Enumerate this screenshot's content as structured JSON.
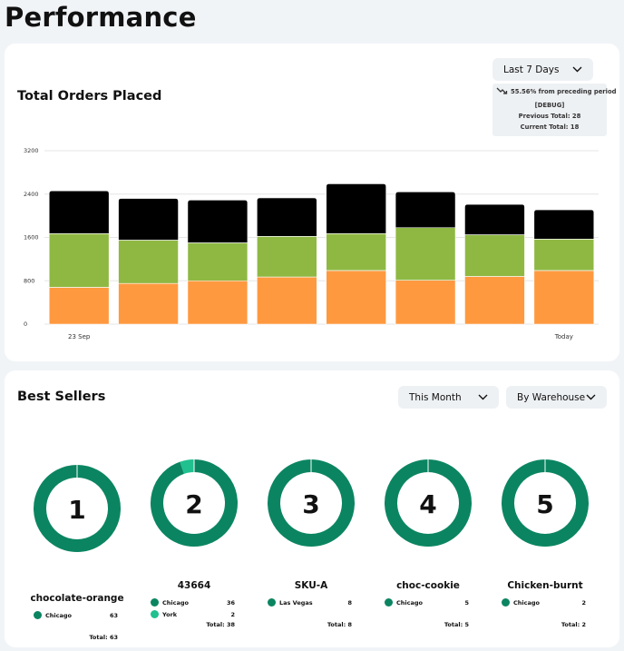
{
  "page": {
    "title": "Performance"
  },
  "orders": {
    "title": "Total Orders Placed",
    "range_dropdown": "Last 7 Days",
    "trend_text": "55.56% from preceding period",
    "debug_label": "[DEBUG]",
    "previous_total": "Previous Total: 28",
    "current_total": "Current Total: 18",
    "colors": {
      "orange": "#ff9940",
      "green": "#8fb843",
      "black": "#000000",
      "grid": "#e6e6e6"
    }
  },
  "chart_data": {
    "type": "bar",
    "stacked": true,
    "categories": [
      "23 Sep",
      "",
      "",
      "",
      "",
      "",
      "",
      "Today"
    ],
    "series": [
      {
        "values": [
          680,
          750,
          800,
          870,
          990,
          810,
          880,
          990
        ]
      },
      {
        "values": [
          990,
          800,
          700,
          750,
          680,
          970,
          770,
          580
        ]
      },
      {
        "values": [
          790,
          770,
          790,
          710,
          920,
          660,
          560,
          540
        ]
      }
    ],
    "yticks": [
      "0",
      "800",
      "1600",
      "2400",
      "3200"
    ],
    "ylim": [
      0,
      3200
    ],
    "grid": true,
    "legend": "none"
  },
  "best": {
    "title": "Best Sellers",
    "period_dropdown": "This Month",
    "group_dropdown": "By Warehouse",
    "colors": {
      "primary": "#0b8561",
      "secondary": "#20c08f"
    },
    "items": [
      {
        "rank": "1",
        "name": "chocolate-orange",
        "rows": [
          {
            "label": "Chicago",
            "value": "63",
            "color": "#0b8561"
          }
        ],
        "total": "Total: 63",
        "slices": [
          63
        ]
      },
      {
        "rank": "2",
        "name": "43664",
        "rows": [
          {
            "label": "Chicago",
            "value": "36",
            "color": "#0b8561"
          },
          {
            "label": "York",
            "value": "2",
            "color": "#20c08f"
          }
        ],
        "total": "Total: 38",
        "slices": [
          36,
          2
        ]
      },
      {
        "rank": "3",
        "name": "SKU-A",
        "rows": [
          {
            "label": "Las Vegas",
            "value": "8",
            "color": "#0b8561"
          }
        ],
        "total": "Total: 8",
        "slices": [
          8
        ]
      },
      {
        "rank": "4",
        "name": "choc-cookie",
        "rows": [
          {
            "label": "Chicago",
            "value": "5",
            "color": "#0b8561"
          }
        ],
        "total": "Total: 5",
        "slices": [
          5
        ]
      },
      {
        "rank": "5",
        "name": "Chicken-burnt",
        "rows": [
          {
            "label": "Chicago",
            "value": "2",
            "color": "#0b8561"
          }
        ],
        "total": "Total: 2",
        "slices": [
          2
        ]
      }
    ]
  }
}
